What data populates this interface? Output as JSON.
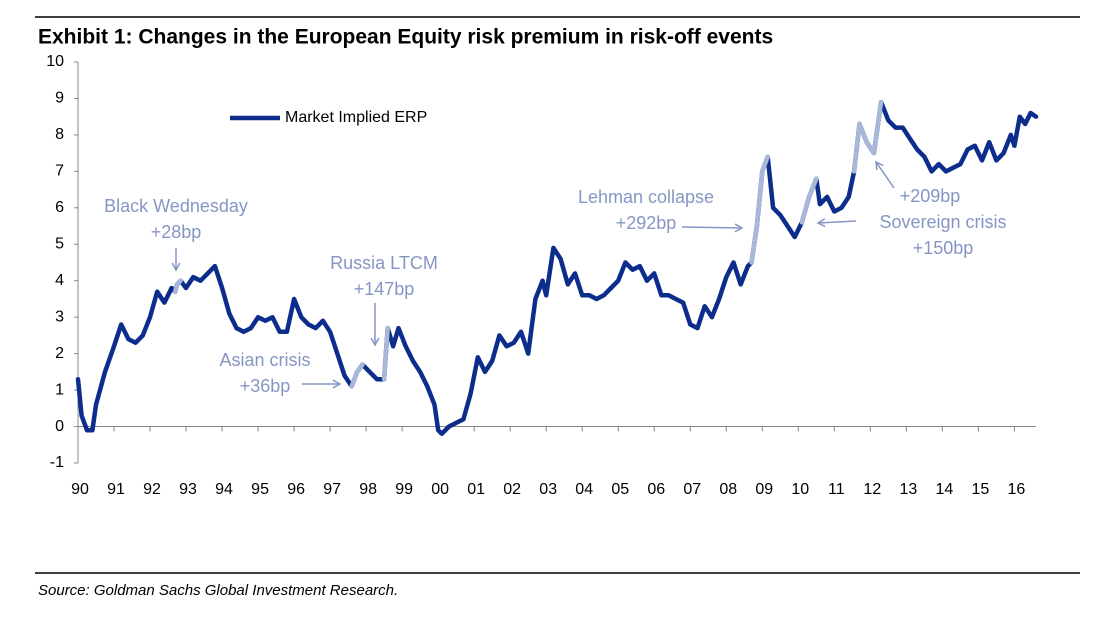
{
  "chart_data": {
    "type": "line",
    "title": "Exhibit 1: Changes in the European Equity risk premium in risk-off events",
    "source": "Source: Goldman Sachs Global Investment Research.",
    "xlim": [
      1990,
      2016.6
    ],
    "xticks": [
      {
        "value": 1990,
        "label": "90"
      },
      {
        "value": 1991,
        "label": "91"
      },
      {
        "value": 1992,
        "label": "92"
      },
      {
        "value": 1993,
        "label": "93"
      },
      {
        "value": 1994,
        "label": "94"
      },
      {
        "value": 1995,
        "label": "95"
      },
      {
        "value": 1996,
        "label": "96"
      },
      {
        "value": 1997,
        "label": "97"
      },
      {
        "value": 1998,
        "label": "98"
      },
      {
        "value": 1999,
        "label": "99"
      },
      {
        "value": 2000,
        "label": "00"
      },
      {
        "value": 2001,
        "label": "01"
      },
      {
        "value": 2002,
        "label": "02"
      },
      {
        "value": 2003,
        "label": "03"
      },
      {
        "value": 2004,
        "label": "04"
      },
      {
        "value": 2005,
        "label": "05"
      },
      {
        "value": 2006,
        "label": "06"
      },
      {
        "value": 2007,
        "label": "07"
      },
      {
        "value": 2008,
        "label": "08"
      },
      {
        "value": 2009,
        "label": "09"
      },
      {
        "value": 2010,
        "label": "10"
      },
      {
        "value": 2011,
        "label": "11"
      },
      {
        "value": 2012,
        "label": "12"
      },
      {
        "value": 2013,
        "label": "13"
      },
      {
        "value": 2014,
        "label": "14"
      },
      {
        "value": 2015,
        "label": "15"
      },
      {
        "value": 2016,
        "label": "16"
      }
    ],
    "ylim": [
      -1,
      10
    ],
    "yticks": [
      -1,
      0,
      1,
      2,
      3,
      4,
      5,
      6,
      7,
      8,
      9,
      10
    ],
    "legend": "upper left",
    "highlight_color": "#a9b8d8",
    "x": [
      1990.0,
      1990.1,
      1990.25,
      1990.4,
      1990.5,
      1990.75,
      1991.0,
      1991.2,
      1991.4,
      1991.6,
      1991.8,
      1992.0,
      1992.2,
      1992.4,
      1992.6,
      1992.7,
      1992.75,
      1992.85,
      1993.0,
      1993.2,
      1993.4,
      1993.6,
      1993.8,
      1994.0,
      1994.2,
      1994.4,
      1994.6,
      1994.8,
      1995.0,
      1995.2,
      1995.4,
      1995.6,
      1995.8,
      1996.0,
      1996.2,
      1996.4,
      1996.6,
      1996.8,
      1997.0,
      1997.2,
      1997.4,
      1997.6,
      1997.75,
      1997.9,
      1998.1,
      1998.3,
      1998.5,
      1998.6,
      1998.75,
      1998.9,
      1999.1,
      1999.3,
      1999.5,
      1999.7,
      1999.9,
      2000.0,
      2000.1,
      2000.3,
      2000.5,
      2000.7,
      2000.9,
      2001.1,
      2001.3,
      2001.5,
      2001.7,
      2001.9,
      2002.1,
      2002.3,
      2002.5,
      2002.7,
      2002.9,
      2003.0,
      2003.2,
      2003.4,
      2003.6,
      2003.8,
      2004.0,
      2004.2,
      2004.4,
      2004.6,
      2004.8,
      2005.0,
      2005.2,
      2005.4,
      2005.6,
      2005.8,
      2006.0,
      2006.2,
      2006.4,
      2006.6,
      2006.8,
      2007.0,
      2007.2,
      2007.4,
      2007.6,
      2007.8,
      2008.0,
      2008.2,
      2008.4,
      2008.6,
      2008.7,
      2008.85,
      2009.0,
      2009.15,
      2009.3,
      2009.5,
      2009.7,
      2009.9,
      2010.1,
      2010.3,
      2010.5,
      2010.6,
      2010.8,
      2011.0,
      2011.2,
      2011.4,
      2011.55,
      2011.7,
      2011.9,
      2012.1,
      2012.3,
      2012.5,
      2012.7,
      2012.9,
      2013.1,
      2013.3,
      2013.5,
      2013.7,
      2013.9,
      2014.1,
      2014.3,
      2014.5,
      2014.7,
      2014.9,
      2015.1,
      2015.3,
      2015.5,
      2015.7,
      2015.9,
      2016.0,
      2016.15,
      2016.3,
      2016.45,
      2016.6
    ],
    "series": [
      {
        "name": "Market Implied ERP",
        "color": "#0c2d8c",
        "values": [
          1.3,
          0.3,
          -0.1,
          -0.1,
          0.6,
          1.5,
          2.2,
          2.8,
          2.4,
          2.3,
          2.5,
          3.0,
          3.7,
          3.4,
          3.8,
          3.7,
          3.9,
          4.0,
          3.8,
          4.1,
          4.0,
          4.2,
          4.4,
          3.8,
          3.1,
          2.7,
          2.6,
          2.7,
          3.0,
          2.9,
          3.0,
          2.6,
          2.6,
          3.5,
          3.0,
          2.8,
          2.7,
          2.9,
          2.6,
          2.0,
          1.4,
          1.1,
          1.5,
          1.7,
          1.5,
          1.3,
          1.3,
          2.7,
          2.2,
          2.7,
          2.2,
          1.8,
          1.5,
          1.1,
          0.6,
          -0.1,
          -0.2,
          0.0,
          0.1,
          0.2,
          0.9,
          1.9,
          1.5,
          1.8,
          2.5,
          2.2,
          2.3,
          2.6,
          2.0,
          3.5,
          4.0,
          3.6,
          4.9,
          4.6,
          3.9,
          4.2,
          3.6,
          3.6,
          3.5,
          3.6,
          3.8,
          4.0,
          4.5,
          4.3,
          4.4,
          4.0,
          4.2,
          3.6,
          3.6,
          3.5,
          3.4,
          2.8,
          2.7,
          3.3,
          3.0,
          3.5,
          4.1,
          4.5,
          3.9,
          4.4,
          4.5,
          5.5,
          7.0,
          7.4,
          6.0,
          5.8,
          5.5,
          5.2,
          5.6,
          6.3,
          6.8,
          6.1,
          6.3,
          5.9,
          6.0,
          6.3,
          7.0,
          8.3,
          7.8,
          7.5,
          8.9,
          8.4,
          8.2,
          8.2,
          7.9,
          7.6,
          7.4,
          7.0,
          7.2,
          7.0,
          7.1,
          7.2,
          7.6,
          7.7,
          7.3,
          7.8,
          7.3,
          7.5,
          8.0,
          7.7,
          8.5,
          8.3,
          8.6,
          8.5
        ]
      }
    ],
    "annotations": [
      {
        "text": [
          "Black Wednesday",
          "+28bp"
        ],
        "range": [
          1992.7,
          1992.85
        ]
      },
      {
        "text": [
          "Asian crisis",
          "+36bp"
        ],
        "range": [
          1997.55,
          1997.95
        ]
      },
      {
        "text": [
          "Russia LTCM",
          "+147bp"
        ],
        "range": [
          1998.45,
          1998.65
        ]
      },
      {
        "text": [
          "Lehman collapse",
          "+292bp"
        ],
        "range": [
          2008.7,
          2009.2
        ]
      },
      {
        "text": [
          "Sovereign crisis",
          "+150bp"
        ],
        "range": [
          2010.05,
          2010.55
        ]
      },
      {
        "text": [
          "+209bp"
        ],
        "range": [
          2011.5,
          2012.35
        ]
      }
    ]
  }
}
